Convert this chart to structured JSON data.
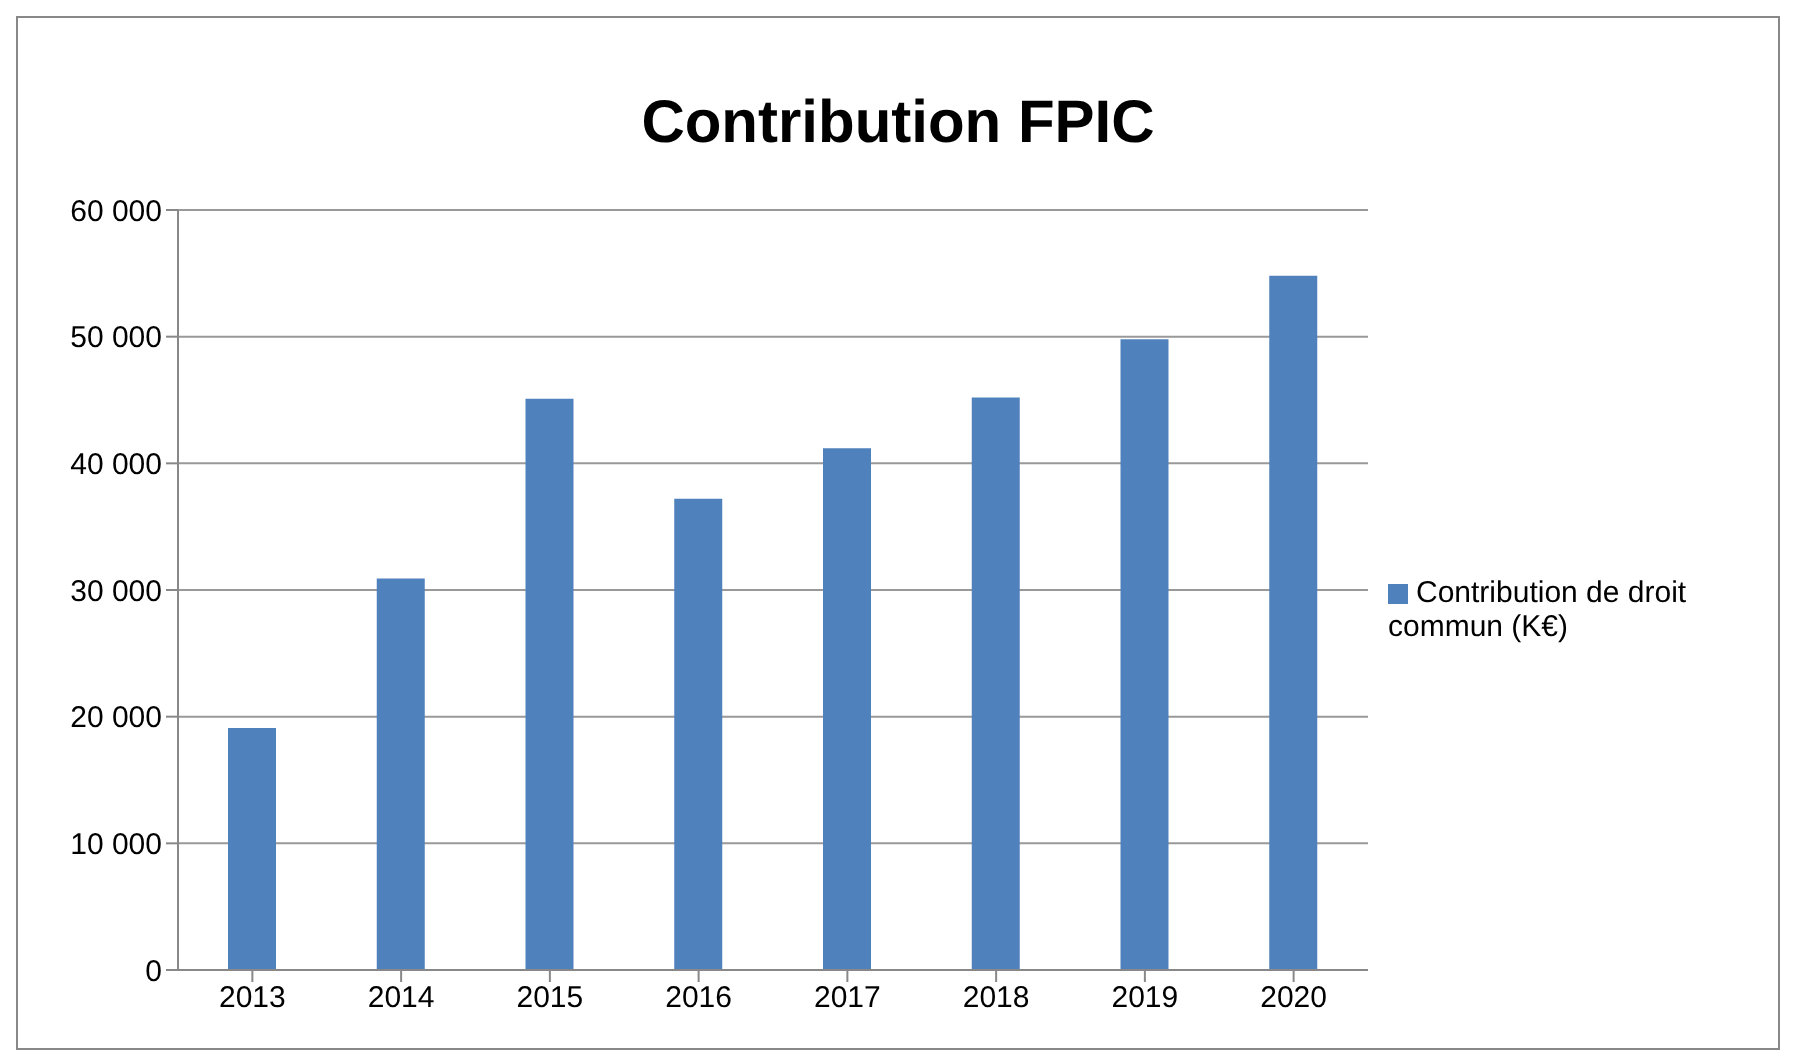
{
  "chart_data": {
    "type": "bar",
    "title": "Contribution FPIC",
    "categories": [
      "2013",
      "2014",
      "2015",
      "2016",
      "2017",
      "2018",
      "2019",
      "2020"
    ],
    "series": [
      {
        "name": "Contribution de droit commun (K€)",
        "color": "#4f81bd",
        "values": [
          19100,
          30900,
          45100,
          37200,
          41200,
          45200,
          49800,
          54800
        ]
      }
    ],
    "ylim": [
      0,
      60000
    ],
    "yticks": [
      {
        "value": 0,
        "label": "0"
      },
      {
        "value": 10000,
        "label": "10 000"
      },
      {
        "value": 20000,
        "label": "20 000"
      },
      {
        "value": 30000,
        "label": "30 000"
      },
      {
        "value": 40000,
        "label": "40 000"
      },
      {
        "value": 50000,
        "label": "50 000"
      },
      {
        "value": 60000,
        "label": "60 000"
      }
    ],
    "grid": "y",
    "legend": "right"
  }
}
